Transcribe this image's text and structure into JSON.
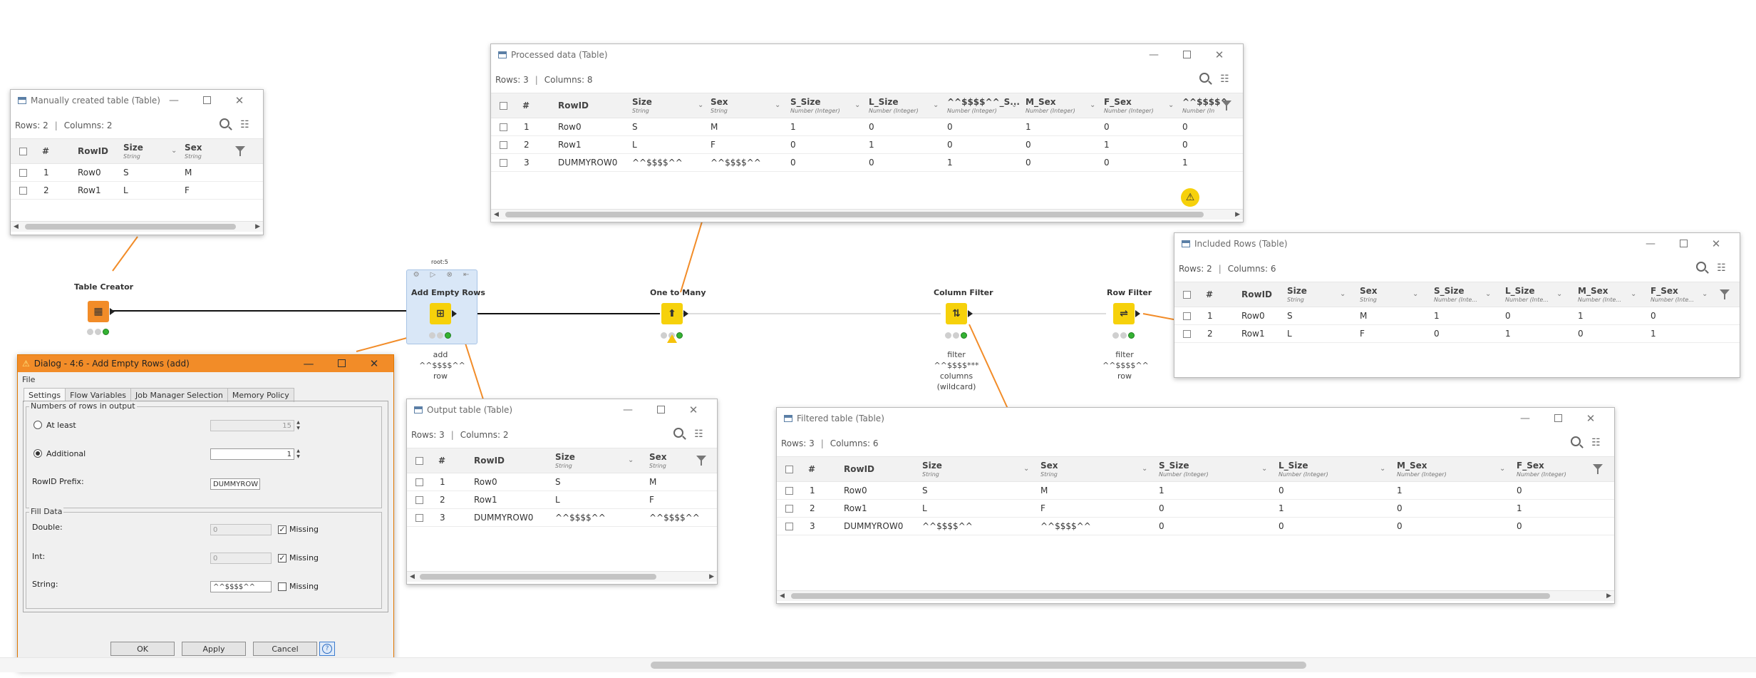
{
  "colors": {
    "node_source": "#f28c28",
    "node_manipulator": "#f6d10b",
    "status_green": "#34b233",
    "connector": "#f28c28",
    "dialog_title": "#f28c28"
  },
  "windows": {
    "manual": {
      "title": "Manually created table (Table)",
      "rows_label": "Rows: 2",
      "cols_label": "Columns: 2",
      "columns": [
        {
          "name": "Size",
          "type": "String"
        },
        {
          "name": "Sex",
          "type": "String"
        }
      ],
      "rows": [
        {
          "n": "1",
          "id": "Row0",
          "v": [
            "S",
            "M"
          ]
        },
        {
          "n": "2",
          "id": "Row1",
          "v": [
            "L",
            "F"
          ]
        }
      ]
    },
    "processed": {
      "title": "Processed data (Table)",
      "rows_label": "Rows: 3",
      "cols_label": "Columns: 8",
      "columns": [
        {
          "name": "Size",
          "type": "String"
        },
        {
          "name": "Sex",
          "type": "String"
        },
        {
          "name": "S_Size",
          "type": "Number (Integer)"
        },
        {
          "name": "L_Size",
          "type": "Number (Integer)"
        },
        {
          "name": "^^$$$$^^_S...",
          "type": "Number (Integer)"
        },
        {
          "name": "M_Sex",
          "type": "Number (Integer)"
        },
        {
          "name": "F_Sex",
          "type": "Number (Integer)"
        },
        {
          "name": "^^$$$$^",
          "type": "Number (In"
        }
      ],
      "rows": [
        {
          "n": "1",
          "id": "Row0",
          "v": [
            "S",
            "M",
            "1",
            "0",
            "0",
            "1",
            "0",
            "0"
          ]
        },
        {
          "n": "2",
          "id": "Row1",
          "v": [
            "L",
            "F",
            "0",
            "1",
            "0",
            "0",
            "1",
            "0"
          ]
        },
        {
          "n": "3",
          "id": "DUMMYROW0",
          "v": [
            "^^$$$$^^",
            "^^$$$$^^",
            "0",
            "0",
            "1",
            "0",
            "0",
            "1"
          ]
        }
      ]
    },
    "included": {
      "title": "Included Rows (Table)",
      "rows_label": "Rows: 2",
      "cols_label": "Columns: 6",
      "columns": [
        {
          "name": "Size",
          "type": "String"
        },
        {
          "name": "Sex",
          "type": "String"
        },
        {
          "name": "S_Size",
          "type": "Number (Inte..."
        },
        {
          "name": "L_Size",
          "type": "Number (Inte..."
        },
        {
          "name": "M_Sex",
          "type": "Number (Inte..."
        },
        {
          "name": "F_Sex",
          "type": "Number (Inte..."
        }
      ],
      "rows": [
        {
          "n": "1",
          "id": "Row0",
          "v": [
            "S",
            "M",
            "1",
            "0",
            "1",
            "0"
          ]
        },
        {
          "n": "2",
          "id": "Row1",
          "v": [
            "L",
            "F",
            "0",
            "1",
            "0",
            "1"
          ]
        }
      ]
    },
    "output": {
      "title": "Output table (Table)",
      "rows_label": "Rows: 3",
      "cols_label": "Columns: 2",
      "columns": [
        {
          "name": "Size",
          "type": "String"
        },
        {
          "name": "Sex",
          "type": "String"
        }
      ],
      "rows": [
        {
          "n": "1",
          "id": "Row0",
          "v": [
            "S",
            "M"
          ]
        },
        {
          "n": "2",
          "id": "Row1",
          "v": [
            "L",
            "F"
          ]
        },
        {
          "n": "3",
          "id": "DUMMYROW0",
          "v": [
            "^^$$$$^^",
            "^^$$$$^^"
          ]
        }
      ]
    },
    "filtered": {
      "title": "Filtered table (Table)",
      "rows_label": "Rows: 3",
      "cols_label": "Columns: 6",
      "columns": [
        {
          "name": "Size",
          "type": "String"
        },
        {
          "name": "Sex",
          "type": "String"
        },
        {
          "name": "S_Size",
          "type": "Number (Integer)"
        },
        {
          "name": "L_Size",
          "type": "Number (Integer)"
        },
        {
          "name": "M_Sex",
          "type": "Number (Integer)"
        },
        {
          "name": "F_Sex",
          "type": "Number (Integer)"
        }
      ],
      "rows": [
        {
          "n": "1",
          "id": "Row0",
          "v": [
            "S",
            "M",
            "1",
            "0",
            "1",
            "0"
          ]
        },
        {
          "n": "2",
          "id": "Row1",
          "v": [
            "L",
            "F",
            "0",
            "1",
            "0",
            "1"
          ]
        },
        {
          "n": "3",
          "id": "DUMMYROW0",
          "v": [
            "^^$$$$^^",
            "^^$$$$^^",
            "0",
            "0",
            "0",
            "0"
          ]
        }
      ]
    }
  },
  "table_header": {
    "num": "#",
    "rowid": "RowID"
  },
  "nodes": {
    "table_creator": {
      "label": "Table Creator"
    },
    "add_empty_rows": {
      "label": "Add Empty Rows",
      "desc": [
        "add",
        "^^$$$$^^",
        "row"
      ],
      "badge": "root:5"
    },
    "one_to_many": {
      "label": "One to Many"
    },
    "column_filter": {
      "label": "Column Filter",
      "desc": [
        "filter",
        "^^$$$$***",
        "columns",
        "(wildcard)"
      ]
    },
    "row_filter": {
      "label": "Row Filter",
      "desc": [
        "filter",
        "^^$$$$^^",
        "row"
      ]
    }
  },
  "dialog": {
    "title": "Dialog - 4:6 - Add Empty Rows (add)",
    "menu_file": "File",
    "tabs": [
      "Settings",
      "Flow Variables",
      "Job Manager Selection",
      "Memory Policy"
    ],
    "numbers_group": "Numbers of rows in output",
    "at_least_label": "At least",
    "at_least_value": "15",
    "additional_label": "Additional",
    "additional_value": "1",
    "rowid_prefix_label": "RowID Prefix:",
    "rowid_prefix_value": "DUMMYROW",
    "fill_group": "Fill Data",
    "double_label": "Double:",
    "double_value": "0",
    "int_label": "Int:",
    "int_value": "0",
    "string_label": "String:",
    "string_value": "^^$$$$^^",
    "missing_label": "Missing",
    "ok": "OK",
    "apply": "Apply",
    "cancel": "Cancel",
    "help": "?"
  }
}
